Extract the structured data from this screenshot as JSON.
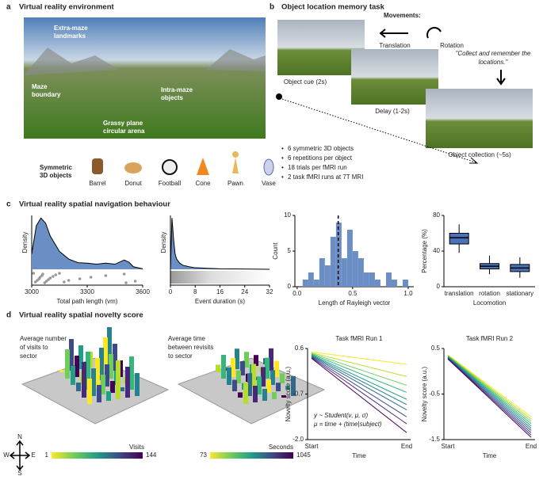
{
  "panel_a": {
    "label": "a",
    "title": "Virtual reality environment",
    "image_labels": [
      [
        "Extra-maze",
        "landmarks"
      ],
      [
        "Maze",
        "boundary"
      ],
      [
        "Intra-maze",
        "objects"
      ],
      [
        "Grassy plane",
        "circular arena"
      ]
    ],
    "objects_label": [
      "Symmetric",
      "3D objects"
    ],
    "objects": [
      "Barrel",
      "Donut",
      "Football",
      "Cone",
      "Pawn",
      "Vase"
    ]
  },
  "panel_b": {
    "label": "b",
    "title": "Object location memory task",
    "movements": "Movements:",
    "translation": "Translation",
    "rotation": "Rotation",
    "quote": [
      "\"Collect and remember the",
      "locations.\""
    ],
    "steps": [
      "Object cue (2s)",
      "Delay (1-2s)",
      "Object collection (~5s)"
    ],
    "bullets": [
      "6 symmetric 3D objects",
      "6 repetitions per object",
      "18 trials per fMRI run",
      "2 task fMRI runs at 7T MRI"
    ]
  },
  "panel_c": {
    "label": "c",
    "title": "Virtual reality spatial navigation behaviour"
  },
  "panel_d": {
    "label": "d",
    "title": "Virtual reality spatial novelty score",
    "map_labels": [
      [
        "Average number",
        "of visits to",
        "sector"
      ],
      [
        "Average time",
        "between revisits",
        "to sector"
      ]
    ],
    "compass": [
      "N",
      "E",
      "S",
      "W"
    ],
    "colorbars": [
      {
        "label": "Visits",
        "min": 1,
        "max": 144
      },
      {
        "label": "Seconds",
        "min": 73,
        "max": 1045
      }
    ]
  },
  "chart_data": [
    {
      "type": "density",
      "xlabel": "Total path length (vm)",
      "ylabel": "Density",
      "color": "#6b8fc4",
      "x": [
        3000,
        3025,
        3050,
        3075,
        3100,
        3150,
        3200,
        3250,
        3300,
        3350,
        3400,
        3450,
        3500,
        3525,
        3550,
        3600
      ],
      "values": [
        0.3,
        0.85,
        1.0,
        0.9,
        0.65,
        0.35,
        0.2,
        0.13,
        0.12,
        0.1,
        0.12,
        0.1,
        0.18,
        0.14,
        0.05,
        0.01
      ],
      "xlim": [
        3000,
        3600
      ],
      "xticks": [
        3000,
        3300,
        3600
      ],
      "ylim": [
        0,
        1.05
      ],
      "strip_x": [
        3010,
        3020,
        3030,
        3040,
        3045,
        3055,
        3060,
        3070,
        3080,
        3090,
        3100,
        3115,
        3130,
        3150,
        3175,
        3200,
        3260,
        3320,
        3400,
        3500,
        3510,
        3560
      ]
    },
    {
      "type": "density",
      "xlabel": "Event duration (s)",
      "ylabel": "Density",
      "color": "#6b8fc4",
      "x": [
        0,
        0.5,
        1,
        1.5,
        2,
        3,
        4,
        6,
        8,
        12,
        16,
        24,
        32
      ],
      "values": [
        0,
        1.0,
        0.6,
        0.3,
        0.2,
        0.12,
        0.08,
        0.05,
        0.03,
        0.02,
        0.01,
        0.005,
        0
      ],
      "xlim": [
        0,
        32
      ],
      "xticks": [
        0,
        8,
        16,
        24,
        32
      ],
      "ylim": [
        0,
        1.05
      ]
    },
    {
      "type": "histogram",
      "xlabel": "Length of Rayleigh vector",
      "ylabel": "Count",
      "color": "#6b8fc4",
      "bins": [
        0,
        0.05,
        0.1,
        0.15,
        0.2,
        0.25,
        0.3,
        0.35,
        0.4,
        0.45,
        0.5,
        0.55,
        0.6,
        0.65,
        0.7,
        0.75,
        0.8,
        0.85,
        0.9,
        0.95,
        1.0
      ],
      "values": [
        0,
        1,
        2,
        1,
        4,
        3,
        7,
        9,
        4,
        8,
        5,
        4,
        2,
        2,
        1,
        0,
        2,
        1,
        0,
        1
      ],
      "vline": 0.37,
      "xlim": [
        -0.02,
        1.05
      ],
      "xticks": [
        {
          "value": 0,
          "label": "0.0"
        },
        0.5,
        {
          "value": 1,
          "label": "1.0"
        }
      ],
      "ylim": [
        0,
        10
      ],
      "yticks": [
        0,
        5,
        10
      ]
    },
    {
      "type": "box",
      "xlabel": "Locomotion",
      "ylabel": "Percentage (%)",
      "color": "#4a72b8",
      "categories": [
        "translation",
        "rotation",
        "stationary"
      ],
      "boxes": [
        {
          "min": 38,
          "q1": 48,
          "median": 55,
          "q3": 60,
          "max": 70
        },
        {
          "min": 14,
          "q1": 20,
          "median": 23,
          "q3": 26,
          "max": 35
        },
        {
          "min": 10,
          "q1": 17,
          "median": 21,
          "q3": 25,
          "max": 33
        }
      ],
      "ylim": [
        0,
        80
      ],
      "yticks": [
        0,
        40,
        80
      ]
    },
    {
      "type": "line",
      "title": "Task fMRI Run 1",
      "xlabel": "Time",
      "ylabel": "Novelty score (a.u.)",
      "categories": [
        "Start",
        "End"
      ],
      "ylim": [
        -2.0,
        0.6
      ],
      "yticks": [
        0.6,
        -0.7,
        {
          "value": -2.0,
          "label": "-2.0"
        }
      ],
      "annotations": [
        "y ~ Student(ν, μ, σ)",
        "μ = time + (time|subject)"
      ],
      "series": [
        {
          "color": "#fde725",
          "values": [
            0.5,
            0.15
          ]
        },
        {
          "color": "#b5de2b",
          "values": [
            0.48,
            -0.2
          ]
        },
        {
          "color": "#6ece58",
          "values": [
            0.46,
            -0.45
          ]
        },
        {
          "color": "#35b779",
          "values": [
            0.44,
            -0.65
          ]
        },
        {
          "color": "#1f9e89",
          "values": [
            0.42,
            -0.85
          ]
        },
        {
          "color": "#26828e",
          "values": [
            0.4,
            -1.0
          ]
        },
        {
          "color": "#31688e",
          "values": [
            0.38,
            -1.15
          ]
        },
        {
          "color": "#3e4989",
          "values": [
            0.36,
            -1.35
          ]
        },
        {
          "color": "#482878",
          "values": [
            0.34,
            -1.55
          ]
        },
        {
          "color": "#440154",
          "values": [
            0.32,
            -1.8
          ]
        }
      ]
    },
    {
      "type": "line",
      "title": "Task fMRI Run 2",
      "xlabel": "Time",
      "ylabel": "Novelty score (a.u.)",
      "categories": [
        "Start",
        "End"
      ],
      "ylim": [
        -1.5,
        0.5
      ],
      "yticks": [
        0.5,
        -0.5,
        -1.5
      ],
      "series": [
        {
          "color": "#fde725",
          "values": [
            0.36,
            -1.0
          ]
        },
        {
          "color": "#b5de2b",
          "values": [
            0.35,
            -1.05
          ]
        },
        {
          "color": "#6ece58",
          "values": [
            0.34,
            -1.1
          ]
        },
        {
          "color": "#35b779",
          "values": [
            0.33,
            -1.15
          ]
        },
        {
          "color": "#1f9e89",
          "values": [
            0.32,
            -1.2
          ]
        },
        {
          "color": "#26828e",
          "values": [
            0.31,
            -1.25
          ]
        },
        {
          "color": "#31688e",
          "values": [
            0.3,
            -1.3
          ]
        },
        {
          "color": "#3e4989",
          "values": [
            0.29,
            -1.35
          ]
        },
        {
          "color": "#482878",
          "values": [
            0.28,
            -1.4
          ]
        },
        {
          "color": "#440154",
          "values": [
            0.27,
            -1.45
          ]
        }
      ]
    }
  ]
}
